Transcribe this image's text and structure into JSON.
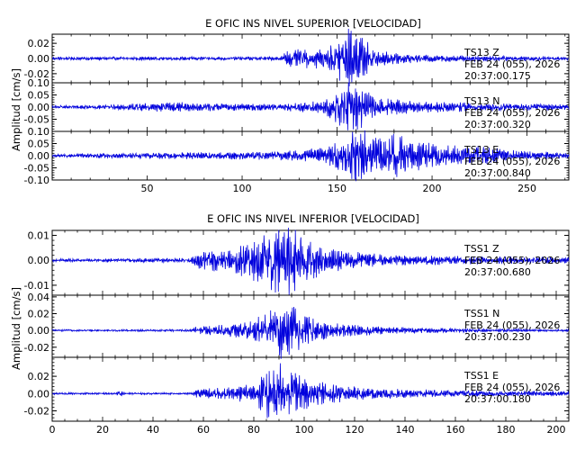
{
  "chart_data": [
    {
      "type": "line",
      "title": "E OFIC INS NIVEL SUPERIOR [VELOCIDAD]",
      "ylabel": "Amplitud [cm/s]",
      "xlim": [
        0,
        272
      ],
      "xticks": [
        50,
        100,
        150,
        200,
        250
      ],
      "series": [
        {
          "name": "TS13 Z",
          "annotation": [
            "TS13   Z",
            "FEB 24 (055), 2026",
            "20:37:00.175"
          ],
          "ylim": [
            -0.032,
            0.032
          ],
          "yticks": [
            -0.02,
            0.0,
            0.02
          ],
          "ytick_labels": [
            "-0.02",
            "0.00",
            "0.02"
          ],
          "envelope": [
            [
              0,
              0.002
            ],
            [
              120,
              0.002
            ],
            [
              123,
              0.009
            ],
            [
              135,
              0.011
            ],
            [
              145,
              0.012
            ],
            [
              152,
              0.03
            ],
            [
              158,
              0.033
            ],
            [
              163,
              0.024
            ],
            [
              170,
              0.012
            ],
            [
              180,
              0.006
            ],
            [
              200,
              0.004
            ],
            [
              272,
              0.002
            ]
          ]
        },
        {
          "name": "TS13 N",
          "annotation": [
            "TS13   N",
            "FEB 24 (055), 2026",
            "20:37:00.320"
          ],
          "ylim": [
            -0.1,
            0.1
          ],
          "yticks": [
            -0.05,
            0.0,
            0.05,
            0.1
          ],
          "ytick_labels": [
            "-0.05",
            "0.00",
            "0.05",
            "0.10"
          ],
          "envelope": [
            [
              0,
              0.005
            ],
            [
              40,
              0.01
            ],
            [
              60,
              0.02
            ],
            [
              80,
              0.015
            ],
            [
              100,
              0.012
            ],
            [
              120,
              0.012
            ],
            [
              140,
              0.02
            ],
            [
              150,
              0.055
            ],
            [
              155,
              0.08
            ],
            [
              160,
              0.09
            ],
            [
              165,
              0.06
            ],
            [
              175,
              0.03
            ],
            [
              190,
              0.02
            ],
            [
              220,
              0.015
            ],
            [
              272,
              0.01
            ]
          ]
        },
        {
          "name": "TS13 E",
          "annotation": [
            "TS13   E",
            "FEB 24 (055), 2026",
            "20:37:00.840"
          ],
          "ylim": [
            -0.1,
            0.1
          ],
          "yticks": [
            -0.1,
            -0.05,
            0.0,
            0.05,
            0.1
          ],
          "ytick_labels": [
            "-0.10",
            "-0.05",
            "0.00",
            "0.05",
            "0.10"
          ],
          "envelope": [
            [
              0,
              0.005
            ],
            [
              40,
              0.01
            ],
            [
              80,
              0.012
            ],
            [
              120,
              0.015
            ],
            [
              145,
              0.03
            ],
            [
              152,
              0.06
            ],
            [
              158,
              0.085
            ],
            [
              165,
              0.095
            ],
            [
              172,
              0.06
            ],
            [
              180,
              0.075
            ],
            [
              188,
              0.06
            ],
            [
              200,
              0.04
            ],
            [
              210,
              0.035
            ],
            [
              225,
              0.035
            ],
            [
              240,
              0.02
            ],
            [
              272,
              0.01
            ]
          ]
        }
      ]
    },
    {
      "type": "line",
      "title": "E OFIC INS NIVEL INFERIOR [VELOCIDAD]",
      "ylabel": "Amplitud [cm/s]",
      "xlim": [
        0,
        205
      ],
      "xticks": [
        0,
        20,
        40,
        60,
        80,
        100,
        120,
        140,
        160,
        180,
        200
      ],
      "series": [
        {
          "name": "TSS1 Z",
          "annotation": [
            "TSS1   Z",
            "FEB 24 (055), 2026",
            "20:37:00.680"
          ],
          "ylim": [
            -0.014,
            0.012
          ],
          "yticks": [
            -0.01,
            0.0,
            0.01
          ],
          "ytick_labels": [
            "-0.01",
            "0.00",
            "0.01"
          ],
          "envelope": [
            [
              0,
              0.0005
            ],
            [
              55,
              0.0008
            ],
            [
              57,
              0.003
            ],
            [
              70,
              0.004
            ],
            [
              80,
              0.007
            ],
            [
              88,
              0.011
            ],
            [
              93,
              0.012
            ],
            [
              100,
              0.008
            ],
            [
              110,
              0.004
            ],
            [
              130,
              0.002
            ],
            [
              160,
              0.0015
            ],
            [
              205,
              0.001
            ]
          ]
        },
        {
          "name": "TSS1 N",
          "annotation": [
            "TSS1   N",
            "FEB 24 (055), 2026",
            "20:37:00.230"
          ],
          "ylim": [
            -0.032,
            0.042
          ],
          "yticks": [
            -0.02,
            0.0,
            0.02,
            0.04
          ],
          "ytick_labels": [
            "-0.02",
            "0.00",
            "0.02",
            "0.04"
          ],
          "envelope": [
            [
              0,
              0.001
            ],
            [
              55,
              0.001
            ],
            [
              57,
              0.004
            ],
            [
              70,
              0.006
            ],
            [
              80,
              0.01
            ],
            [
              85,
              0.02
            ],
            [
              90,
              0.03
            ],
            [
              95,
              0.025
            ],
            [
              100,
              0.015
            ],
            [
              110,
              0.008
            ],
            [
              130,
              0.004
            ],
            [
              160,
              0.002
            ],
            [
              205,
              0.001
            ]
          ]
        },
        {
          "name": "TSS1 E",
          "annotation": [
            "TSS1   E",
            "FEB 24 (055), 2026",
            "20:37:00.180"
          ],
          "ylim": [
            -0.032,
            0.042
          ],
          "yticks": [
            -0.02,
            0.0,
            0.02
          ],
          "ytick_labels": [
            "-0.02",
            "0.00",
            "0.02"
          ],
          "envelope": [
            [
              0,
              0.001
            ],
            [
              25,
              0.001
            ],
            [
              27,
              0.003
            ],
            [
              29,
              0.001
            ],
            [
              55,
              0.001
            ],
            [
              57,
              0.004
            ],
            [
              70,
              0.006
            ],
            [
              80,
              0.01
            ],
            [
              85,
              0.025
            ],
            [
              90,
              0.03
            ],
            [
              95,
              0.022
            ],
            [
              105,
              0.012
            ],
            [
              120,
              0.007
            ],
            [
              140,
              0.004
            ],
            [
              170,
              0.003
            ],
            [
              205,
              0.002
            ]
          ]
        }
      ]
    }
  ],
  "colors": {
    "trace": "#0000dd",
    "axis": "#000000"
  }
}
